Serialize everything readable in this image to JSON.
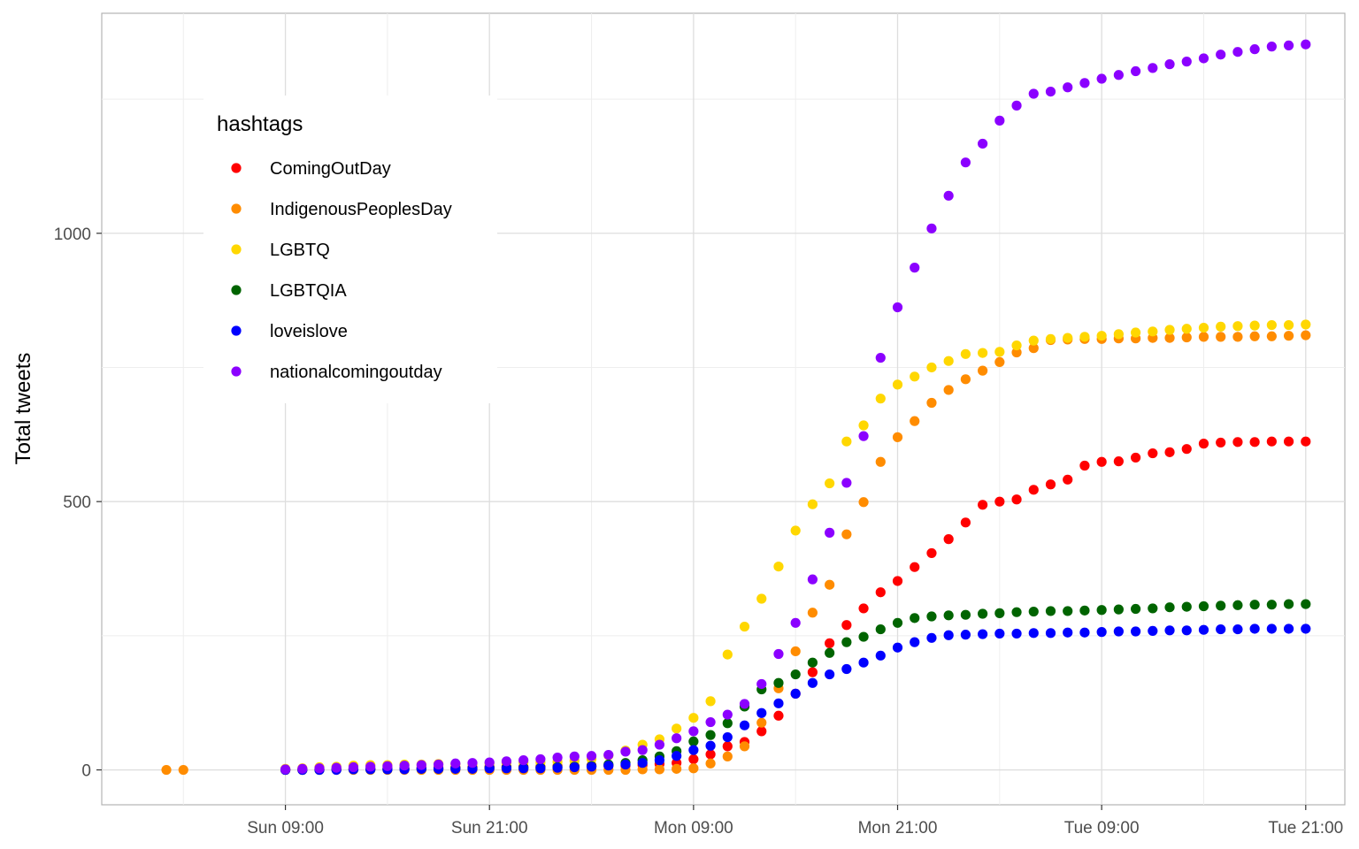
{
  "chart_data": {
    "type": "scatter",
    "title": "",
    "xlabel": "",
    "ylabel": "Total tweets",
    "x_unit": "hours",
    "x_ticks": [
      {
        "value": 9,
        "label": "Sun 09:00"
      },
      {
        "value": 21,
        "label": "Sun 21:00"
      },
      {
        "value": 33,
        "label": "Mon 09:00"
      },
      {
        "value": 45,
        "label": "Mon 21:00"
      },
      {
        "value": 57,
        "label": "Tue 09:00"
      },
      {
        "value": 69,
        "label": "Tue 21:00"
      }
    ],
    "y_ticks": [
      0,
      500,
      1000
    ],
    "xlim": [
      -1.8,
      71.3
    ],
    "ylim": [
      -65,
      1410
    ],
    "grid": true,
    "legend": {
      "title": "hashtags",
      "position": "top-left"
    },
    "x": [
      2,
      3,
      9,
      10,
      11,
      12,
      13,
      14,
      15,
      16,
      17,
      18,
      19,
      20,
      21,
      22,
      23,
      24,
      25,
      26,
      27,
      28,
      29,
      30,
      31,
      32,
      33,
      34,
      35,
      36,
      37,
      38,
      39,
      40,
      41,
      42,
      43,
      44,
      45,
      46,
      47,
      48,
      49,
      50,
      51,
      52,
      53,
      54,
      55,
      56,
      57,
      58,
      59,
      60,
      61,
      62,
      63,
      64,
      65,
      66,
      67,
      68,
      69
    ],
    "series": [
      {
        "name": "ComingOutDay",
        "color": "#FF0000",
        "values": [
          null,
          null,
          0,
          0,
          1,
          1,
          2,
          2,
          3,
          3,
          4,
          4,
          5,
          5,
          6,
          6,
          6,
          6,
          7,
          7,
          8,
          8,
          8,
          9,
          11,
          13,
          20,
          29,
          44,
          52,
          72,
          101,
          142,
          182,
          236,
          270,
          301,
          331,
          352,
          378,
          404,
          430,
          461,
          494,
          500,
          504,
          522,
          532,
          541,
          567,
          574,
          575,
          582,
          590,
          592,
          598,
          608,
          610,
          611,
          611,
          612,
          612,
          612
        ]
      },
      {
        "name": "IndigenousPeoplesDay",
        "color": "#FF8C00",
        "values": [
          0,
          0,
          0,
          0,
          0,
          0,
          0,
          0,
          0,
          0,
          0,
          0,
          0,
          0,
          0,
          0,
          0,
          0,
          0,
          0,
          0,
          0,
          0,
          1,
          1,
          2,
          3,
          12,
          25,
          44,
          88,
          152,
          221,
          293,
          345,
          439,
          499,
          574,
          620,
          650,
          684,
          708,
          728,
          744,
          760,
          778,
          786,
          801,
          802,
          803,
          803,
          804,
          804,
          805,
          805,
          806,
          807,
          807,
          807,
          808,
          808,
          809,
          810
        ]
      },
      {
        "name": "LGBTQ",
        "color": "#FFD700",
        "values": [
          null,
          null,
          2,
          3,
          5,
          6,
          8,
          9,
          9,
          10,
          10,
          11,
          11,
          11,
          12,
          13,
          14,
          14,
          15,
          17,
          20,
          27,
          36,
          47,
          57,
          77,
          97,
          128,
          215,
          267,
          319,
          379,
          446,
          495,
          534,
          612,
          642,
          692,
          718,
          733,
          750,
          762,
          775,
          777,
          779,
          791,
          800,
          803,
          805,
          807,
          809,
          812,
          815,
          817,
          820,
          822,
          824,
          826,
          827,
          828,
          829,
          829,
          830
        ]
      },
      {
        "name": "LGBTQIA",
        "color": "#006400",
        "values": [
          null,
          null,
          0,
          0,
          0,
          1,
          1,
          1,
          1,
          2,
          2,
          2,
          3,
          3,
          4,
          4,
          4,
          4,
          5,
          6,
          7,
          10,
          13,
          18,
          25,
          35,
          53,
          65,
          87,
          118,
          150,
          162,
          178,
          200,
          218,
          238,
          248,
          262,
          274,
          283,
          286,
          288,
          289,
          291,
          292,
          294,
          295,
          296,
          296,
          297,
          298,
          299,
          300,
          301,
          303,
          304,
          305,
          306,
          307,
          308,
          308,
          309,
          309
        ]
      },
      {
        "name": "loveislove",
        "color": "#0000FF",
        "values": [
          null,
          null,
          0,
          0,
          0,
          0,
          1,
          1,
          1,
          1,
          2,
          2,
          2,
          2,
          3,
          3,
          3,
          3,
          4,
          5,
          6,
          8,
          10,
          13,
          18,
          26,
          37,
          45,
          61,
          83,
          106,
          124,
          142,
          162,
          178,
          188,
          200,
          213,
          228,
          238,
          246,
          251,
          252,
          253,
          254,
          254,
          255,
          255,
          256,
          256,
          257,
          258,
          258,
          259,
          260,
          260,
          261,
          262,
          262,
          263,
          263,
          263,
          263
        ]
      },
      {
        "name": "nationalcomingoutday",
        "color": "#8B00FF",
        "values": [
          null,
          null,
          1,
          2,
          3,
          4,
          5,
          6,
          7,
          8,
          9,
          10,
          12,
          13,
          14,
          16,
          18,
          20,
          23,
          25,
          26,
          28,
          34,
          37,
          47,
          59,
          72,
          89,
          103,
          123,
          160,
          216,
          274,
          355,
          442,
          535,
          622,
          768,
          862,
          936,
          1009,
          1070,
          1132,
          1167,
          1210,
          1238,
          1260,
          1264,
          1272,
          1280,
          1288,
          1295,
          1302,
          1308,
          1315,
          1320,
          1326,
          1333,
          1338,
          1343,
          1348,
          1350,
          1352
        ]
      }
    ]
  }
}
